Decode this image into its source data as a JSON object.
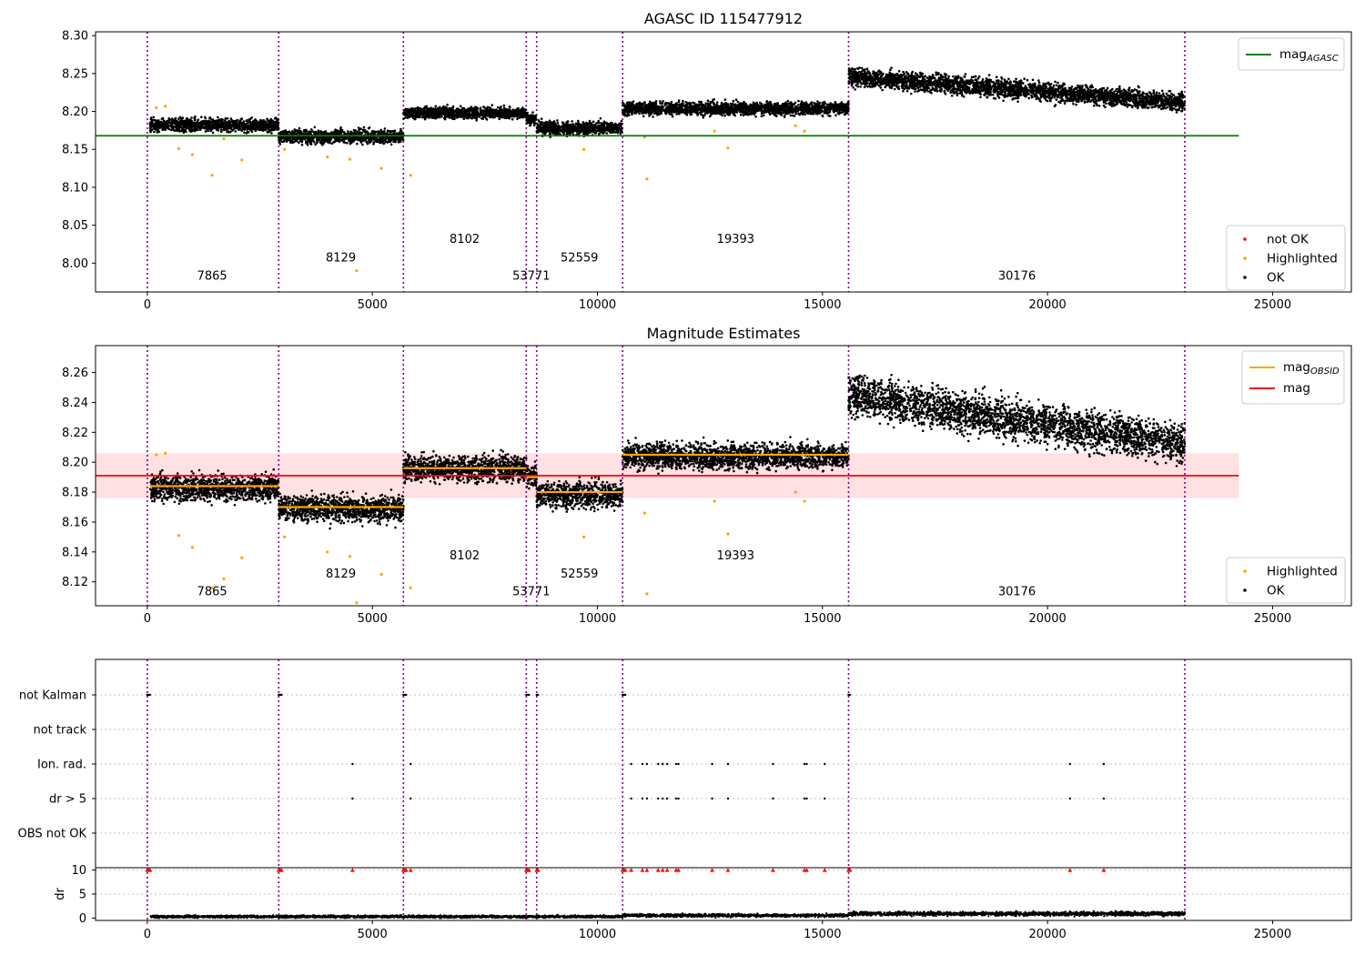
{
  "chart_data": [
    {
      "type": "scatter",
      "title": "AGASC ID 115477912",
      "xlim": [
        -1150,
        26750
      ],
      "ylim": [
        7.962,
        8.305
      ],
      "xticks": [
        0,
        5000,
        10000,
        15000,
        20000,
        25000
      ],
      "yticks": [
        8.0,
        8.05,
        8.1,
        8.15,
        8.2,
        8.25,
        8.3
      ],
      "ytick_labels": [
        "8.00",
        "8.05",
        "8.10",
        "8.15",
        "8.20",
        "8.25",
        "8.30"
      ],
      "obsid_boundaries": [
        0,
        2920,
        5690,
        8420,
        8650,
        10560,
        15580,
        23050
      ],
      "obsid_labels": [
        {
          "text": "7865",
          "x": 1440,
          "y": 7.978
        },
        {
          "text": "8129",
          "x": 4300,
          "y": 8.002
        },
        {
          "text": "8102",
          "x": 7050,
          "y": 8.027
        },
        {
          "text": "53771",
          "x": 8530,
          "y": 7.978
        },
        {
          "text": "52559",
          "x": 9600,
          "y": 8.002
        },
        {
          "text": "19393",
          "x": 13070,
          "y": 8.027
        },
        {
          "text": "30176",
          "x": 19320,
          "y": 7.978
        }
      ],
      "reference_lines": [
        {
          "name": "mag_AGASC",
          "y": 8.168,
          "x": [
            -1150,
            24250
          ],
          "color": "#008000"
        }
      ],
      "segments": [
        {
          "x": [
            60,
            2920
          ],
          "mean": 8.182,
          "spread": 0.007
        },
        {
          "x": [
            2920,
            5690
          ],
          "mean": 8.167,
          "spread": 0.007
        },
        {
          "x": [
            5690,
            8420
          ],
          "mean": 8.198,
          "spread": 0.006
        },
        {
          "x": [
            8420,
            8650
          ],
          "mean": 8.19,
          "spread": 0.007
        },
        {
          "x": [
            8650,
            10560
          ],
          "mean": 8.178,
          "spread": 0.007
        },
        {
          "x": [
            10560,
            15580
          ],
          "mean": 8.204,
          "spread": 0.007
        },
        {
          "x": [
            15580,
            23050
          ],
          "mean_start": 8.246,
          "mean_end": 8.212,
          "spread": 0.01
        }
      ],
      "highlighted_points": [
        [
          1440,
          8.116
        ],
        [
          1000,
          8.143
        ],
        [
          700,
          8.151
        ],
        [
          2100,
          8.136
        ],
        [
          4500,
          8.137
        ],
        [
          4650,
          7.99
        ],
        [
          5200,
          8.125
        ],
        [
          5850,
          8.116
        ],
        [
          3050,
          8.15
        ],
        [
          11100,
          8.111
        ],
        [
          12900,
          8.152
        ],
        [
          12600,
          8.174
        ],
        [
          14400,
          8.181
        ],
        [
          4000,
          8.14
        ],
        [
          9700,
          8.15
        ],
        [
          11050,
          8.166
        ],
        [
          1700,
          8.164
        ],
        [
          200,
          8.205
        ],
        [
          400,
          8.207
        ],
        [
          14600,
          8.174
        ]
      ],
      "legend": {
        "position": "top-right",
        "entries": [
          {
            "label": "mag",
            "sub": "AGASC",
            "color": "#008000"
          }
        ]
      },
      "legend2": {
        "position": "bottom-right",
        "entries": [
          {
            "label": "not OK",
            "color": "#ff0000"
          },
          {
            "label": "Highlighted",
            "color": "#ffa500"
          },
          {
            "label": "OK",
            "color": "#000000"
          }
        ]
      }
    },
    {
      "type": "scatter",
      "title": "Magnitude Estimates",
      "xlim": [
        -1150,
        26750
      ],
      "ylim": [
        8.104,
        8.278
      ],
      "xticks": [
        0,
        5000,
        10000,
        15000,
        20000,
        25000
      ],
      "yticks": [
        8.12,
        8.14,
        8.16,
        8.18,
        8.2,
        8.22,
        8.24,
        8.26
      ],
      "ytick_labels": [
        "8.12",
        "8.14",
        "8.16",
        "8.18",
        "8.20",
        "8.22",
        "8.24",
        "8.26"
      ],
      "obsid_boundaries": [
        0,
        2920,
        5690,
        8420,
        8650,
        10560,
        15580,
        23050
      ],
      "obsid_labels": [
        {
          "text": "7865",
          "x": 1440,
          "y": 8.111
        },
        {
          "text": "8129",
          "x": 4300,
          "y": 8.123
        },
        {
          "text": "8102",
          "x": 7050,
          "y": 8.135
        },
        {
          "text": "53771",
          "x": 8530,
          "y": 8.111
        },
        {
          "text": "52559",
          "x": 9600,
          "y": 8.123
        },
        {
          "text": "19393",
          "x": 13070,
          "y": 8.135
        },
        {
          "text": "30176",
          "x": 19320,
          "y": 8.111
        }
      ],
      "reference_lines": [
        {
          "name": "mag",
          "y": 8.191,
          "x": [
            -1150,
            24250
          ],
          "color": "#ff0000"
        }
      ],
      "band": {
        "y": [
          8.176,
          8.206
        ],
        "x": [
          -1150,
          24250
        ],
        "color": "#ffe0e3"
      },
      "obsid_means": [
        {
          "x": [
            60,
            2920
          ],
          "y": 8.184
        },
        {
          "x": [
            2920,
            5690
          ],
          "y": 8.17
        },
        {
          "x": [
            5690,
            8420
          ],
          "y": 8.196
        },
        {
          "x": [
            8420,
            8650
          ],
          "y": 8.19
        },
        {
          "x": [
            8650,
            10560
          ],
          "y": 8.18
        },
        {
          "x": [
            10560,
            15580
          ],
          "y": 8.205
        }
      ],
      "segments": [
        {
          "x": [
            60,
            2920
          ],
          "mean": 8.183,
          "spread": 0.007
        },
        {
          "x": [
            2920,
            5690
          ],
          "mean": 8.169,
          "spread": 0.007
        },
        {
          "x": [
            5690,
            8420
          ],
          "mean": 8.196,
          "spread": 0.007
        },
        {
          "x": [
            8420,
            8650
          ],
          "mean": 8.19,
          "spread": 0.007
        },
        {
          "x": [
            8650,
            10560
          ],
          "mean": 8.178,
          "spread": 0.007
        },
        {
          "x": [
            10560,
            15580
          ],
          "mean": 8.204,
          "spread": 0.007
        },
        {
          "x": [
            15580,
            23050
          ],
          "mean_start": 8.245,
          "mean_end": 8.212,
          "spread": 0.011
        }
      ],
      "highlighted_points": [
        [
          1440,
          8.116
        ],
        [
          1000,
          8.143
        ],
        [
          700,
          8.151
        ],
        [
          2100,
          8.136
        ],
        [
          4500,
          8.137
        ],
        [
          4650,
          8.106
        ],
        [
          5200,
          8.125
        ],
        [
          5850,
          8.116
        ],
        [
          3050,
          8.15
        ],
        [
          11100,
          8.112
        ],
        [
          12900,
          8.152
        ],
        [
          12600,
          8.174
        ],
        [
          14400,
          8.18
        ],
        [
          4000,
          8.14
        ],
        [
          9700,
          8.15
        ],
        [
          11050,
          8.166
        ],
        [
          1700,
          8.122
        ],
        [
          200,
          8.205
        ],
        [
          400,
          8.206
        ],
        [
          14600,
          8.174
        ]
      ],
      "legend": {
        "position": "top-right",
        "entries": [
          {
            "label": "mag",
            "sub": "OBSID",
            "color": "#ffa500"
          },
          {
            "label": "mag",
            "sub": "",
            "color": "#ff0000"
          }
        ]
      },
      "legend2": {
        "position": "bottom-right",
        "entries": [
          {
            "label": "Highlighted",
            "color": "#ffa500"
          },
          {
            "label": "OK",
            "color": "#000000"
          }
        ]
      }
    },
    {
      "type": "scatter",
      "xlim": [
        -1150,
        26750
      ],
      "flag_rows": [
        "not Kalman",
        "not track",
        "Ion. rad.",
        "dr > 5",
        "OBS not OK"
      ],
      "obsid_boundaries": [
        0,
        2920,
        5690,
        8420,
        8650,
        10560,
        15580,
        23050
      ],
      "flag_points": {
        "not Kalman": [
          0,
          30,
          60,
          2920,
          2950,
          2980,
          5690,
          5720,
          5750,
          8420,
          8450,
          8480,
          8650,
          8680,
          10560,
          10590,
          10620,
          15580,
          15610
        ],
        "Ion. rad.": [
          4560,
          5850,
          10750,
          11000,
          11100,
          11350,
          11450,
          11550,
          11750,
          11800,
          12550,
          12900,
          13900,
          14600,
          14650,
          15050,
          20500,
          21250
        ],
        "dr > 5": [
          4560,
          5850,
          10750,
          11000,
          11100,
          11350,
          11450,
          11550,
          11750,
          11800,
          12550,
          12900,
          13900,
          14600,
          14650,
          15050,
          20500,
          21250
        ]
      }
    },
    {
      "type": "scatter",
      "xlim": [
        -1150,
        26750
      ],
      "ylim": [
        -0.5,
        10.5
      ],
      "ylabel": "dr",
      "xticks": [
        0,
        5000,
        10000,
        15000,
        20000,
        25000
      ],
      "yticks": [
        0,
        5,
        10
      ],
      "ytick_labels": [
        "0",
        "5",
        "10"
      ],
      "obsid_boundaries": [
        0,
        2920,
        5690,
        8420,
        8650,
        10560,
        15580,
        23050
      ],
      "dr_clipped_points": [
        0,
        30,
        60,
        2920,
        2950,
        2980,
        4560,
        5690,
        5720,
        5750,
        5850,
        8420,
        8450,
        8480,
        8650,
        8680,
        10560,
        10590,
        10620,
        10750,
        11000,
        11100,
        11350,
        11450,
        11550,
        11750,
        11800,
        12550,
        12900,
        13900,
        14600,
        14650,
        15050,
        15580,
        15610,
        20500,
        21250
      ],
      "dr_segments": [
        {
          "x": [
            60,
            10560
          ],
          "mean": 0.3,
          "spread": 0.25
        },
        {
          "x": [
            10560,
            15580
          ],
          "mean": 0.55,
          "spread": 0.3
        },
        {
          "x": [
            15580,
            23050
          ],
          "mean": 0.9,
          "spread": 0.4
        }
      ]
    }
  ]
}
